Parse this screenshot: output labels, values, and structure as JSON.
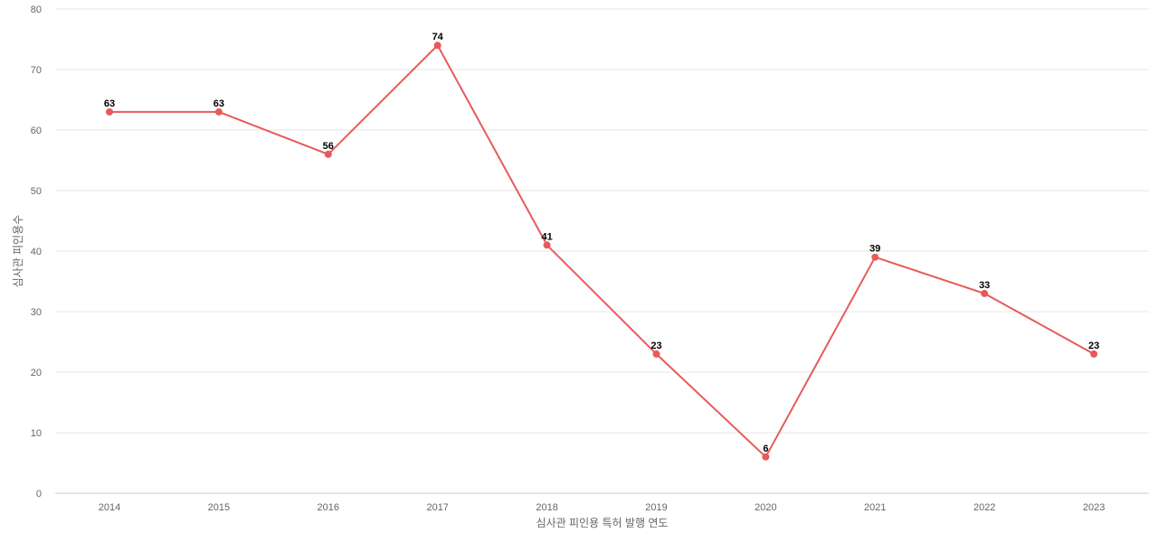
{
  "chart_data": {
    "type": "line",
    "title": "",
    "xlabel": "심사관 피인용 특허 발행 연도",
    "ylabel": "심사관 피인용수",
    "categories": [
      "2014",
      "2015",
      "2016",
      "2017",
      "2018",
      "2019",
      "2020",
      "2021",
      "2022",
      "2023"
    ],
    "series": [
      {
        "values": [
          63,
          63,
          56,
          74,
          41,
          23,
          6,
          39,
          33,
          23
        ],
        "color": "#e85a5a"
      }
    ],
    "ylim": [
      0,
      80
    ],
    "yticks": [
      0,
      10,
      20,
      30,
      40,
      50,
      60,
      70,
      80
    ],
    "grid": true,
    "legend": "none",
    "data_labels": true
  }
}
